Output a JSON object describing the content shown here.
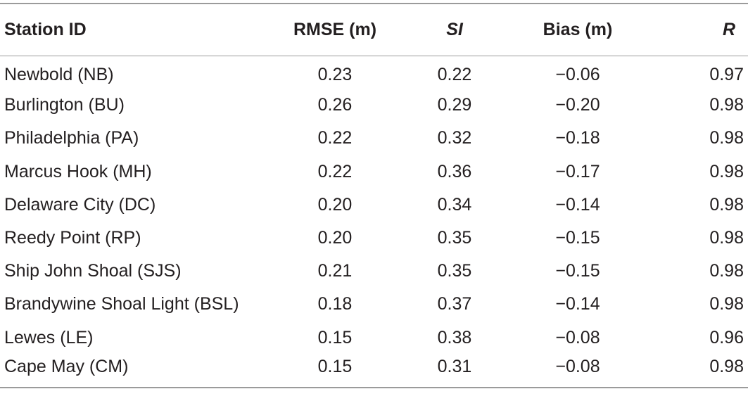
{
  "table": {
    "headers": {
      "station": "Station ID",
      "rmse": "RMSE (m)",
      "si": "SI",
      "bias": "Bias (m)",
      "r": "R"
    },
    "rows": [
      {
        "station": "Newbold (NB)",
        "rmse": "0.23",
        "si": "0.22",
        "bias": "−0.06",
        "r": "0.97"
      },
      {
        "station": "Burlington (BU)",
        "rmse": "0.26",
        "si": "0.29",
        "bias": "−0.20",
        "r": "0.98"
      },
      {
        "station": "Philadelphia (PA)",
        "rmse": "0.22",
        "si": "0.32",
        "bias": "−0.18",
        "r": "0.98"
      },
      {
        "station": "Marcus Hook (MH)",
        "rmse": "0.22",
        "si": "0.36",
        "bias": "−0.17",
        "r": "0.98"
      },
      {
        "station": "Delaware City (DC)",
        "rmse": "0.20",
        "si": "0.34",
        "bias": "−0.14",
        "r": "0.98"
      },
      {
        "station": "Reedy Point (RP)",
        "rmse": "0.20",
        "si": "0.35",
        "bias": "−0.15",
        "r": "0.98"
      },
      {
        "station": "Ship John Shoal (SJS)",
        "rmse": "0.21",
        "si": "0.35",
        "bias": "−0.15",
        "r": "0.98"
      },
      {
        "station": "Brandywine Shoal Light (BSL)",
        "rmse": "0.18",
        "si": "0.37",
        "bias": "−0.14",
        "r": "0.98"
      },
      {
        "station": "Lewes (LE)",
        "rmse": "0.15",
        "si": "0.38",
        "bias": "−0.08",
        "r": "0.96"
      },
      {
        "station": "Cape May (CM)",
        "rmse": "0.15",
        "si": "0.31",
        "bias": "−0.08",
        "r": "0.98"
      }
    ]
  }
}
